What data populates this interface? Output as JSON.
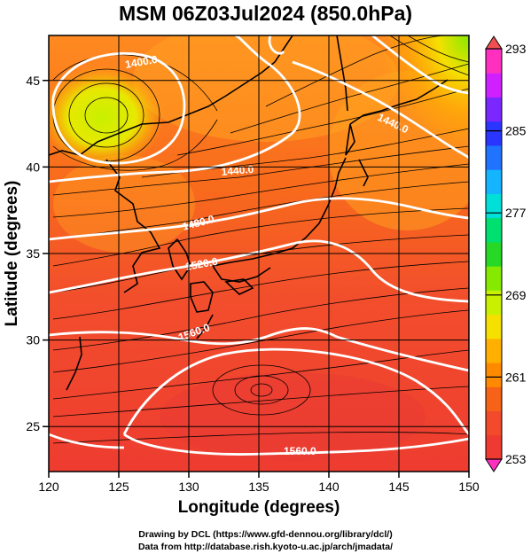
{
  "title": "MSM 06Z03Jul2024 (850.0hPa)",
  "x_axis": {
    "label": "Longitude (degrees)",
    "ticks": [
      "120",
      "125",
      "130",
      "135",
      "140",
      "145",
      "150"
    ],
    "range": [
      120,
      150
    ]
  },
  "y_axis": {
    "label": "Latitude (degrees)",
    "ticks": [
      "25",
      "30",
      "35",
      "40",
      "45"
    ],
    "range": [
      22.4,
      47.6
    ]
  },
  "colorbar": {
    "ticks": [
      "293",
      "285",
      "277",
      "269",
      "261",
      "253"
    ],
    "range": [
      253,
      293
    ],
    "colors": [
      "#ff30c0",
      "#d020ff",
      "#7a28ff",
      "#2a35ff",
      "#1f73ff",
      "#14b4ff",
      "#00e0d8",
      "#00e070",
      "#27d827",
      "#86ea00",
      "#c8f000",
      "#f5e000",
      "#ffb000",
      "#ff8a00",
      "#f66318",
      "#f24a2a",
      "#ee3a30"
    ]
  },
  "contours": [
    {
      "label": "1400.0"
    },
    {
      "label": "1440.0"
    },
    {
      "label": "1440.0"
    },
    {
      "label": "1480.0"
    },
    {
      "label": "1520.0"
    },
    {
      "label": "1560.0"
    },
    {
      "label": "1560.0"
    }
  ],
  "credits": {
    "line1": "Drawing by DCL (https://www.gfd-dennou.org/library/dcl/)",
    "line2": "Data from http://database.rish.kyoto-u.ac.jp/arch/jmadata/"
  }
}
